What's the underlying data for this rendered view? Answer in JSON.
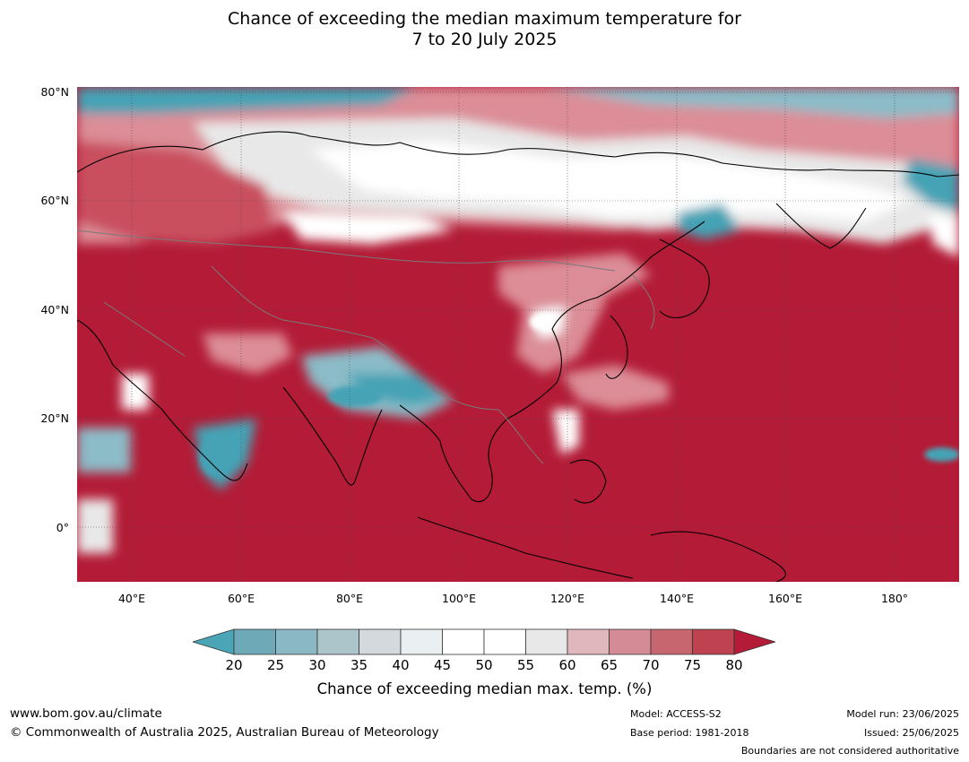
{
  "title": {
    "line1": "Chance of exceeding the median maximum temperature for",
    "line2": "7 to 20 July 2025"
  },
  "map": {
    "y_axis": [
      "80°N",
      "60°N",
      "40°N",
      "20°N",
      "0°"
    ],
    "x_axis": [
      "40°E",
      "60°E",
      "80°E",
      "100°E",
      "120°E",
      "140°E",
      "160°E",
      "180°"
    ],
    "lat_range": [
      -10,
      81
    ],
    "lon_range": [
      30,
      192
    ],
    "colors": {
      "very_high": "#b31b36",
      "high": "#c94f5e",
      "mid_high": "#dc8d97",
      "neutral": "#f5f5f5",
      "light_gray": "#dde2e5",
      "mid_low": "#8bbcc8",
      "low": "#45a3b5",
      "coast": "#000000",
      "border": "#7a7a7a",
      "grid": "#4a4a4a"
    }
  },
  "colorbar": {
    "ticks": [
      "20",
      "25",
      "30",
      "35",
      "40",
      "45",
      "50",
      "55",
      "60",
      "65",
      "70",
      "75",
      "80"
    ],
    "colors": [
      "#4aa6b7",
      "#6da9b6",
      "#8ab8c4",
      "#abc5ca",
      "#d3d9dc",
      "#eaeff1",
      "#ffffff",
      "#ffffff",
      "#e8e8e8",
      "#dfb7bd",
      "#d48b95",
      "#c86670",
      "#be4250",
      "#b31b36"
    ],
    "label": "Chance of exceeding median max. temp. (%)"
  },
  "footer": {
    "website": "www.bom.gov.au/climate",
    "copyright": "© Commonwealth of Australia 2025, Australian Bureau of Meteorology",
    "model": "Model: ACCESS-S2",
    "base_period": "Base period: 1981-2018",
    "model_run": "Model run: 23/06/2025",
    "issued": "Issued: 25/06/2025",
    "disclaimer": "Boundaries are not considered authoritative"
  }
}
